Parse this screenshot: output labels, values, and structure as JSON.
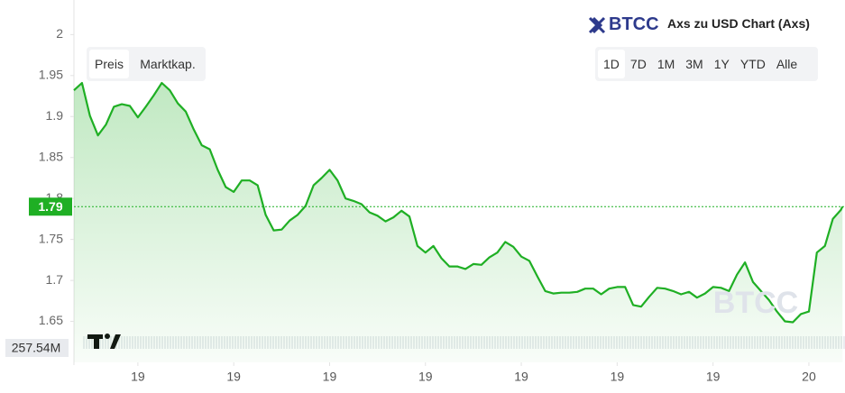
{
  "chart_data": {
    "type": "area",
    "title": "Axs zu USD Chart (Axs)",
    "x": [
      1,
      1.25,
      1.5,
      1.75,
      2,
      2.25,
      2.5,
      2.75,
      3,
      3.25,
      3.5,
      3.75,
      4,
      4.25,
      4.5,
      4.75,
      5,
      5.25,
      5.5,
      5.75,
      6,
      6.25,
      6.5,
      6.75,
      7,
      7.25,
      7.5,
      7.75,
      8,
      8.25,
      8.5,
      8.75,
      9,
      9.25,
      9.5,
      9.75,
      10,
      10.25,
      10.5,
      10.75,
      11,
      11.25,
      11.5,
      11.75,
      12,
      12.25,
      12.5,
      12.75,
      13,
      13.25,
      13.5,
      13.75,
      14,
      14.25,
      14.5,
      14.75,
      15,
      15.25,
      15.5,
      15.75,
      16,
      16.25,
      16.5,
      16.75,
      17,
      17.25,
      17.5,
      17.75,
      18,
      18.25,
      18.5,
      18.75,
      19,
      19.25,
      19.5,
      19.75,
      20,
      20.25,
      20.5,
      20.75,
      21,
      21.25,
      21.5,
      21.75,
      22,
      22.25,
      22.5,
      22.75,
      23,
      23.25,
      23.5,
      23.75,
      24,
      24.25,
      24.5,
      24.75,
      25,
      25.05
    ],
    "series": [
      {
        "name": "Axs",
        "color": "#1faf24",
        "values": [
          1.932,
          1.941,
          1.901,
          1.877,
          1.89,
          1.912,
          1.915,
          1.913,
          1.899,
          1.912,
          1.926,
          1.941,
          1.932,
          1.916,
          1.906,
          1.884,
          1.865,
          1.86,
          1.835,
          1.814,
          1.808,
          1.822,
          1.822,
          1.816,
          1.78,
          1.761,
          1.762,
          1.773,
          1.78,
          1.791,
          1.816,
          1.825,
          1.835,
          1.822,
          1.8,
          1.797,
          1.793,
          1.783,
          1.779,
          1.772,
          1.777,
          1.785,
          1.778,
          1.742,
          1.734,
          1.742,
          1.727,
          1.717,
          1.717,
          1.714,
          1.72,
          1.719,
          1.728,
          1.734,
          1.747,
          1.741,
          1.729,
          1.724,
          1.705,
          1.687,
          1.684,
          1.685,
          1.685,
          1.686,
          1.69,
          1.69,
          1.683,
          1.69,
          1.692,
          1.692,
          1.67,
          1.668,
          1.68,
          1.691,
          1.69,
          1.687,
          1.683,
          1.686,
          1.679,
          1.684,
          1.692,
          1.691,
          1.687,
          1.707,
          1.722,
          1.698,
          1.687,
          1.676,
          1.662,
          1.65,
          1.649,
          1.659,
          1.662,
          1.734,
          1.742,
          1.775,
          1.786,
          1.79
        ]
      }
    ],
    "xlim": [
      1,
      25.13
    ],
    "xticks": [
      {
        "value": 3,
        "label": "19"
      },
      {
        "value": 6,
        "label": "19"
      },
      {
        "value": 9,
        "label": "19"
      },
      {
        "value": 12,
        "label": "19"
      },
      {
        "value": 15,
        "label": "19"
      },
      {
        "value": 18,
        "label": "19"
      },
      {
        "value": 21,
        "label": "19"
      },
      {
        "value": 24,
        "label": "20"
      }
    ],
    "ylim": [
      1.6,
      2.04
    ],
    "yticks": [
      1.65,
      1.7,
      1.75,
      1.8,
      1.85,
      1.9,
      1.95,
      2
    ],
    "current_price": 1.79,
    "volume_label": "257.54M"
  },
  "ui": {
    "logo": "BTCC",
    "tabs": [
      "Preis",
      "Marktkap."
    ],
    "periods": [
      "1D",
      "7D",
      "1M",
      "3M",
      "1Y",
      "YTD",
      "Alle"
    ],
    "watermark": "BTCC"
  }
}
